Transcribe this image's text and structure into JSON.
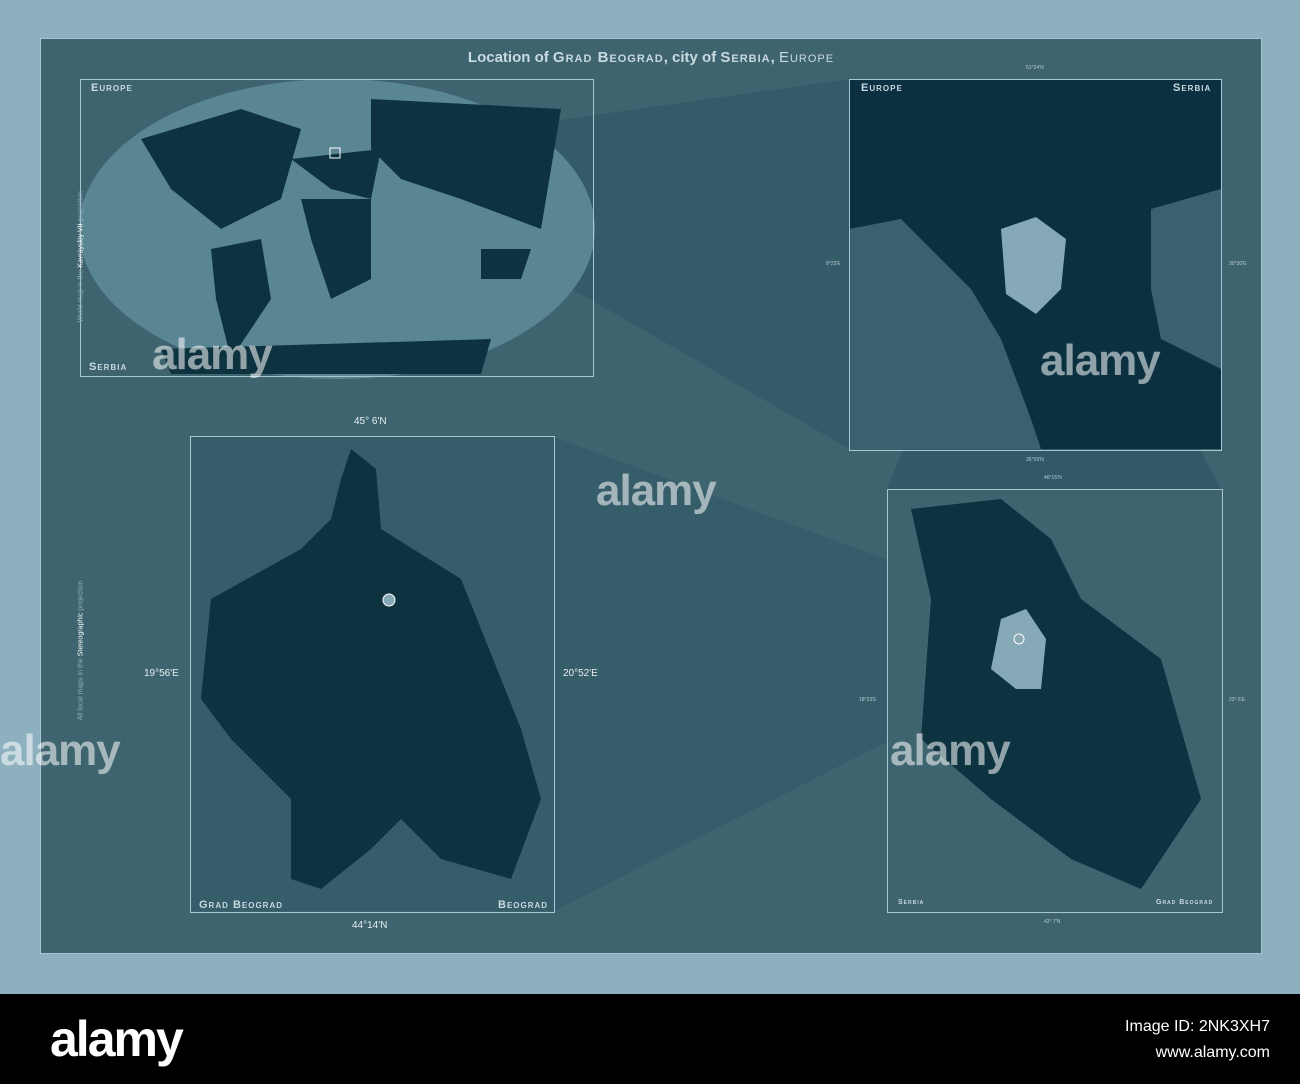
{
  "title": {
    "prefix": "Location of ",
    "region": "Grad Beograd",
    "mid": ", city of ",
    "country": "Serbia",
    "sep": ", ",
    "continent": "Europe"
  },
  "world_map": {
    "label_top": "Europe",
    "label_bottom": "Serbia"
  },
  "europe_map": {
    "label_left": "Europe",
    "label_right": "Serbia",
    "lat_top": "51°24'N",
    "lon_left": "8°23'E",
    "lon_right": "30°30'E",
    "lat_bottom": "35°59'N"
  },
  "serbia_map": {
    "label_left": "Serbia",
    "label_right": "Grad Beograd",
    "lat_top": "46°15'N",
    "lon_left": "18°33'E",
    "lon_right": "23° 6'E",
    "lat_bottom": "42° 7'N"
  },
  "region_map": {
    "label_left": "Grad Beograd",
    "label_right": "Beograd",
    "lat_top": "45° 6'N",
    "lat_bottom": "44°14'N",
    "lon_left": "19°56'E",
    "lon_right": "20°52'E"
  },
  "side_notes": {
    "world": {
      "pre": "World map in the ",
      "name": "Kavrayskiy VII",
      "post": " projection"
    },
    "local": {
      "pre": "All local maps in the ",
      "name": "Stereographic",
      "post": " projection"
    }
  },
  "watermark": "alamy",
  "footer": {
    "logo": "alamy",
    "image_id": "Image ID: 2NK3XH7",
    "url": "www.alamy.com"
  },
  "colors": {
    "background": "#3e6470",
    "land": "#0d3340",
    "highlight": "#86a9b7",
    "frame": "#8cb0be"
  }
}
